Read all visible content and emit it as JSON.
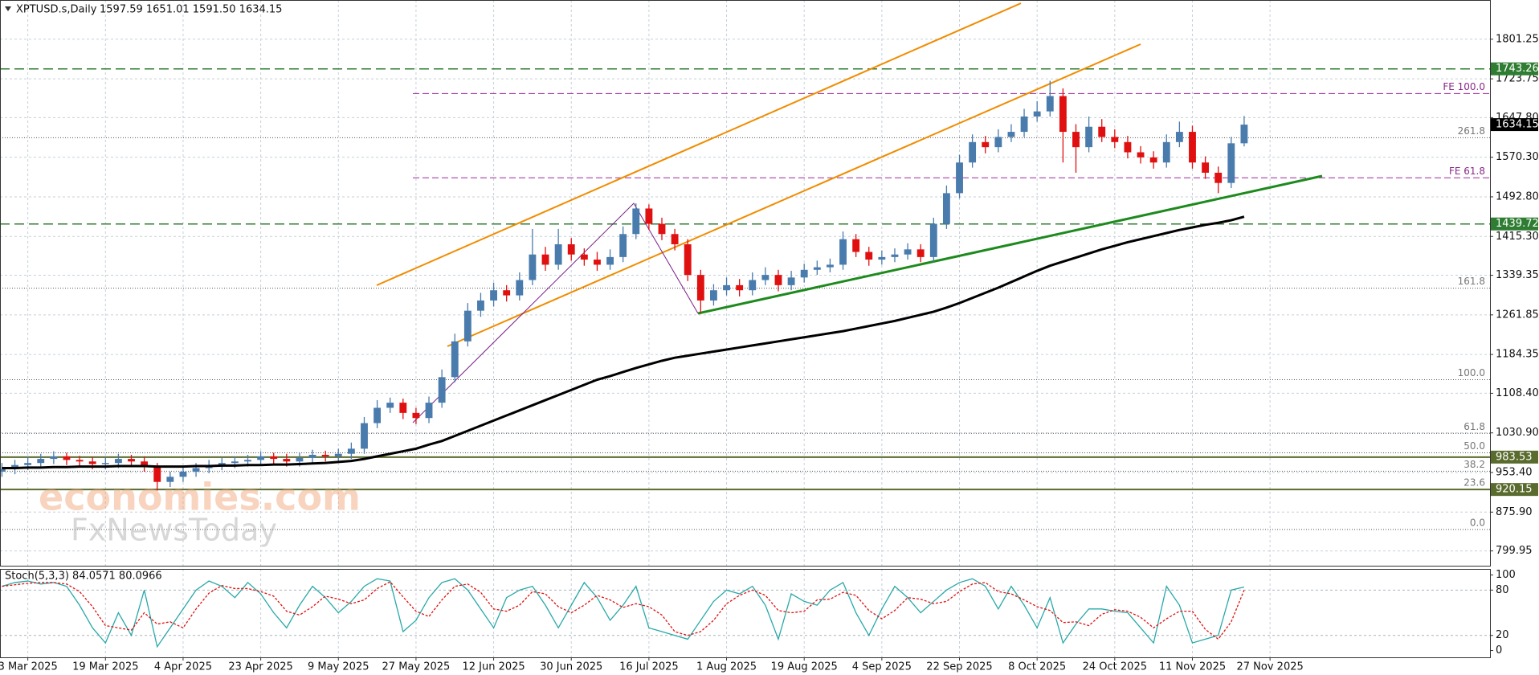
{
  "chart_data": [
    {
      "type": "candlestick",
      "title": "XPTUSD.s,Daily",
      "ohlc_text": "1597.59 1651.01 1591.50 1634.15",
      "x": [
        0,
        2,
        4,
        6,
        8,
        10,
        12,
        14,
        16,
        18,
        20,
        22,
        24,
        26,
        28,
        30,
        32,
        34,
        36,
        38,
        40,
        42,
        44,
        46,
        48,
        50,
        52,
        54,
        56,
        58,
        60,
        62,
        64,
        66,
        68,
        70,
        72,
        74,
        76,
        78,
        80,
        82,
        84,
        86,
        88,
        90,
        92,
        94,
        96,
        98,
        100,
        102,
        104,
        106,
        108,
        110,
        112,
        114,
        116,
        118,
        120,
        122,
        124,
        126,
        128,
        130,
        132,
        134,
        136,
        138,
        140,
        142,
        144,
        146,
        148,
        150,
        152,
        154,
        156,
        158,
        160,
        162,
        164,
        166,
        168,
        170,
        172,
        174,
        176,
        178,
        180,
        182,
        184,
        186,
        188,
        190,
        192
      ],
      "open": [
        955,
        960,
        968,
        972,
        980,
        985,
        978,
        975,
        970,
        972,
        980,
        975,
        965,
        935,
        945,
        955,
        962,
        968,
        972,
        975,
        978,
        985,
        980,
        975,
        982,
        988,
        985,
        990,
        1000,
        1050,
        1080,
        1090,
        1070,
        1060,
        1090,
        1140,
        1210,
        1270,
        1290,
        1310,
        1300,
        1330,
        1380,
        1360,
        1400,
        1380,
        1370,
        1360,
        1375,
        1420,
        1470,
        1440,
        1420,
        1400,
        1340,
        1290,
        1310,
        1320,
        1310,
        1330,
        1340,
        1320,
        1335,
        1350,
        1355,
        1360,
        1410,
        1385,
        1370,
        1375,
        1380,
        1390,
        1375,
        1440,
        1500,
        1560,
        1600,
        1590,
        1610,
        1620,
        1650,
        1660,
        1690,
        1620,
        1590,
        1630,
        1610,
        1600,
        1580,
        1570,
        1560,
        1600,
        1620,
        1560,
        1540,
        1520,
        1597.59
      ],
      "high": [
        972,
        978,
        985,
        990,
        995,
        992,
        986,
        984,
        982,
        990,
        988,
        985,
        972,
        955,
        965,
        972,
        978,
        982,
        985,
        988,
        995,
        992,
        990,
        992,
        998,
        996,
        1000,
        1012,
        1062,
        1095,
        1100,
        1098,
        1080,
        1102,
        1155,
        1225,
        1285,
        1305,
        1325,
        1320,
        1345,
        1430,
        1395,
        1430,
        1412,
        1392,
        1385,
        1390,
        1435,
        1480,
        1478,
        1452,
        1430,
        1410,
        1350,
        1322,
        1335,
        1332,
        1345,
        1355,
        1350,
        1348,
        1362,
        1368,
        1372,
        1425,
        1420,
        1395,
        1388,
        1392,
        1402,
        1400,
        1452,
        1515,
        1575,
        1615,
        1612,
        1625,
        1635,
        1665,
        1680,
        1720,
        1705,
        1635,
        1650,
        1645,
        1625,
        1612,
        1592,
        1582,
        1615,
        1640,
        1632,
        1572,
        1552,
        1610,
        1651.01
      ],
      "low": [
        945,
        950,
        958,
        962,
        970,
        968,
        965,
        960,
        960,
        962,
        965,
        955,
        918,
        925,
        935,
        945,
        952,
        958,
        962,
        965,
        968,
        970,
        965,
        965,
        972,
        975,
        975,
        980,
        990,
        1040,
        1070,
        1058,
        1048,
        1050,
        1080,
        1130,
        1200,
        1258,
        1278,
        1288,
        1290,
        1320,
        1348,
        1350,
        1368,
        1358,
        1348,
        1350,
        1365,
        1410,
        1428,
        1408,
        1388,
        1328,
        1265,
        1280,
        1300,
        1298,
        1300,
        1320,
        1308,
        1310,
        1325,
        1340,
        1345,
        1350,
        1375,
        1358,
        1360,
        1365,
        1370,
        1365,
        1365,
        1430,
        1490,
        1550,
        1578,
        1580,
        1600,
        1610,
        1640,
        1650,
        1560,
        1540,
        1580,
        1600,
        1588,
        1568,
        1558,
        1548,
        1550,
        1590,
        1548,
        1528,
        1500,
        1510,
        1591.5
      ],
      "close": [
        960,
        968,
        972,
        980,
        985,
        978,
        975,
        970,
        972,
        980,
        975,
        965,
        935,
        945,
        955,
        962,
        968,
        972,
        975,
        978,
        985,
        980,
        975,
        982,
        988,
        985,
        990,
        1000,
        1050,
        1080,
        1090,
        1070,
        1060,
        1090,
        1140,
        1210,
        1270,
        1290,
        1310,
        1300,
        1330,
        1380,
        1360,
        1400,
        1380,
        1370,
        1360,
        1375,
        1420,
        1470,
        1440,
        1420,
        1400,
        1340,
        1290,
        1310,
        1320,
        1310,
        1330,
        1340,
        1320,
        1335,
        1350,
        1355,
        1360,
        1410,
        1385,
        1370,
        1375,
        1380,
        1390,
        1375,
        1440,
        1500,
        1560,
        1600,
        1590,
        1610,
        1620,
        1650,
        1660,
        1690,
        1620,
        1590,
        1630,
        1610,
        1600,
        1580,
        1570,
        1560,
        1600,
        1620,
        1560,
        1540,
        1520,
        1597.59,
        1634.15
      ],
      "up_color": "#4a7bad",
      "down_color": "#e01010",
      "ma": {
        "color": "#000000",
        "values": [
          962,
          962,
          963,
          963,
          964,
          964,
          965,
          965,
          965,
          966,
          966,
          966,
          965,
          965,
          965,
          966,
          966,
          967,
          967,
          968,
          968,
          969,
          969,
          970,
          971,
          972,
          974,
          976,
          980,
          985,
          990,
          995,
          1000,
          1008,
          1015,
          1025,
          1035,
          1045,
          1055,
          1065,
          1075,
          1085,
          1095,
          1105,
          1115,
          1125,
          1135,
          1142,
          1150,
          1158,
          1165,
          1172,
          1178,
          1182,
          1186,
          1190,
          1194,
          1198,
          1202,
          1206,
          1210,
          1214,
          1218,
          1222,
          1226,
          1230,
          1235,
          1240,
          1245,
          1250,
          1256,
          1262,
          1268,
          1276,
          1285,
          1295,
          1305,
          1315,
          1326,
          1337,
          1348,
          1358,
          1366,
          1374,
          1382,
          1390,
          1397,
          1404,
          1410,
          1416,
          1422,
          1428,
          1433,
          1438,
          1442,
          1447,
          1454
        ]
      },
      "xlim": [
        -0.3,
        230
      ],
      "xticks": [
        {
          "value": 4,
          "label": "3 Mar 2025"
        },
        {
          "value": 16,
          "label": "19 Mar 2025"
        },
        {
          "value": 28,
          "label": "4 Apr 2025"
        },
        {
          "value": 40,
          "label": "23 Apr 2025"
        },
        {
          "value": 52,
          "label": "9 May 2025"
        },
        {
          "value": 64,
          "label": "27 May 2025"
        },
        {
          "value": 76,
          "label": "12 Jun 2025"
        },
        {
          "value": 88,
          "label": "30 Jun 2025"
        },
        {
          "value": 100,
          "label": "16 Jul 2025"
        },
        {
          "value": 112,
          "label": "1 Aug 2025"
        },
        {
          "value": 124,
          "label": "19 Aug 2025"
        },
        {
          "value": 136,
          "label": "4 Sep 2025"
        },
        {
          "value": 148,
          "label": "22 Sep 2025"
        },
        {
          "value": 160,
          "label": "8 Oct 2025"
        },
        {
          "value": 172,
          "label": "24 Oct 2025"
        },
        {
          "value": 184,
          "label": "11 Nov 2025"
        },
        {
          "value": 196,
          "label": "27 Nov 2025"
        }
      ],
      "ylim": [
        771,
        1878
      ],
      "yticks": [
        799.95,
        {
          "value": 875.9,
          "label": "875.90"
        },
        {
          "value": 953.4,
          "label": "953.40"
        },
        {
          "value": 1030.9,
          "label": "1030.90"
        },
        {
          "value": 1108.4,
          "label": "1108.40"
        },
        1184.35,
        1261.85,
        1339.35,
        {
          "value": 1415.3,
          "label": "1415.30"
        },
        {
          "value": 1492.8,
          "label": "1492.80"
        },
        {
          "value": 1570.3,
          "label": "1570.30"
        },
        {
          "value": 1647.8,
          "label": "1647.80"
        },
        1723.75,
        1801.25
      ],
      "grid": true,
      "price_levels": [
        {
          "value": 1743.26,
          "style": "dashed",
          "color": "#2e7d32"
        },
        {
          "value": 1439.72,
          "style": "dashed",
          "color": "#2e7d32"
        },
        {
          "value": 983.53,
          "style": "solid",
          "color": "#5a6b2e"
        },
        {
          "value": 920.15,
          "style": "solid",
          "color": "#5a6b2e"
        }
      ],
      "fib_levels": [
        {
          "value": 1608.6,
          "label": "261.8"
        },
        {
          "value": 1314,
          "label": "161.8"
        },
        {
          "value": 1135,
          "label": "100.0"
        },
        {
          "value": 1030,
          "label": "61.8"
        },
        {
          "value": 992,
          "label": "50.0"
        },
        {
          "value": 956,
          "label": "38.2"
        },
        {
          "value": 920,
          "label": "23.6"
        },
        {
          "value": 842,
          "label": "0.0"
        }
      ],
      "fe_levels": [
        {
          "value": 1695,
          "label": "FE 100.0"
        },
        {
          "value": 1530,
          "label": "FE 61.8"
        }
      ],
      "last_price": 1634.15,
      "watermark": [
        "economies.com",
        "FxNewsToday"
      ]
    },
    {
      "type": "line",
      "title": "Stoch(5,3,3) 84.0571 80.0966",
      "ylim": [
        -9,
        108
      ],
      "yticks": [
        0,
        20,
        80,
        100
      ],
      "levels": [
        20,
        80
      ],
      "series": [
        {
          "color": "#2aa8a8",
          "style": "solid",
          "values": [
            85,
            90,
            92,
            88,
            90,
            85,
            60,
            30,
            10,
            50,
            20,
            80,
            5,
            30,
            55,
            80,
            92,
            85,
            70,
            90,
            75,
            50,
            30,
            60,
            85,
            70,
            50,
            65,
            85,
            95,
            92,
            25,
            40,
            70,
            90,
            95,
            80,
            55,
            30,
            70,
            80,
            85,
            60,
            30,
            60,
            90,
            70,
            40,
            60,
            85,
            30,
            25,
            20,
            15,
            40,
            65,
            80,
            75,
            85,
            60,
            15,
            75,
            65,
            60,
            80,
            90,
            50,
            20,
            55,
            85,
            70,
            50,
            65,
            80,
            90,
            95,
            85,
            55,
            85,
            60,
            30,
            70,
            10,
            35,
            55,
            55,
            52,
            50,
            30,
            10,
            85,
            60,
            10,
            15,
            20,
            80,
            84.0571
          ]
        },
        {
          "color": "#e01010",
          "style": "dotted",
          "values": [
            85,
            87,
            89,
            90,
            90,
            88,
            78,
            58,
            33,
            30,
            27,
            50,
            35,
            38,
            30,
            55,
            76,
            86,
            82,
            82,
            78,
            72,
            52,
            47,
            58,
            72,
            68,
            62,
            67,
            82,
            91,
            71,
            52,
            45,
            67,
            85,
            88,
            77,
            55,
            52,
            60,
            78,
            75,
            58,
            50,
            60,
            73,
            67,
            57,
            62,
            58,
            47,
            25,
            20,
            25,
            40,
            62,
            73,
            80,
            73,
            53,
            50,
            52,
            67,
            68,
            77,
            73,
            53,
            42,
            53,
            70,
            68,
            62,
            65,
            78,
            88,
            90,
            78,
            75,
            67,
            58,
            53,
            37,
            38,
            33,
            48,
            54,
            52,
            44,
            30,
            42,
            52,
            52,
            28,
            15,
            38,
            80.0966
          ]
        }
      ]
    }
  ]
}
